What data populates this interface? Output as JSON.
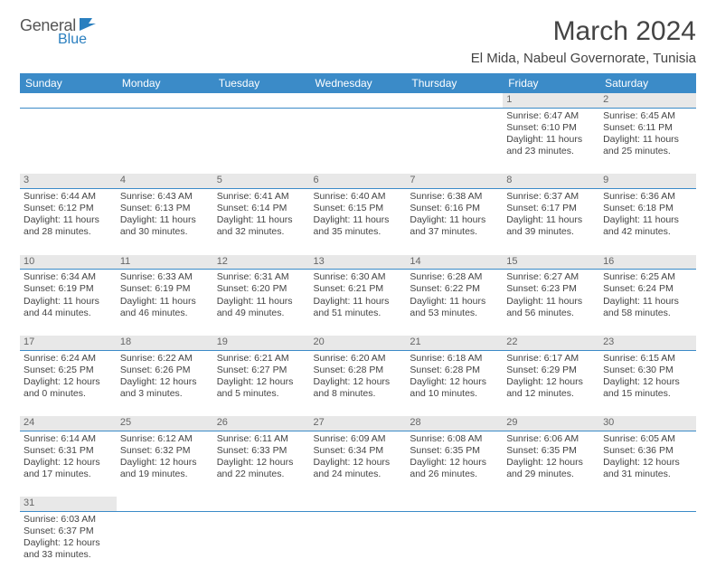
{
  "logo": {
    "textA": "General",
    "textB": "Blue"
  },
  "title": "March 2024",
  "location": "El Mida, Nabeul Governorate, Tunisia",
  "colors": {
    "header_bg": "#3b8bc8",
    "header_text": "#ffffff",
    "daynum_bg": "#e8e8e8",
    "daynum_text": "#666666",
    "border": "#3b8bc8",
    "body_text": "#444444",
    "logo_accent": "#2a7fbf"
  },
  "weekdays": [
    "Sunday",
    "Monday",
    "Tuesday",
    "Wednesday",
    "Thursday",
    "Friday",
    "Saturday"
  ],
  "weeks": [
    [
      {
        "day": "",
        "sunrise": "",
        "sunset": "",
        "daylight1": "",
        "daylight2": ""
      },
      {
        "day": "",
        "sunrise": "",
        "sunset": "",
        "daylight1": "",
        "daylight2": ""
      },
      {
        "day": "",
        "sunrise": "",
        "sunset": "",
        "daylight1": "",
        "daylight2": ""
      },
      {
        "day": "",
        "sunrise": "",
        "sunset": "",
        "daylight1": "",
        "daylight2": ""
      },
      {
        "day": "",
        "sunrise": "",
        "sunset": "",
        "daylight1": "",
        "daylight2": ""
      },
      {
        "day": "1",
        "sunrise": "Sunrise: 6:47 AM",
        "sunset": "Sunset: 6:10 PM",
        "daylight1": "Daylight: 11 hours",
        "daylight2": "and 23 minutes."
      },
      {
        "day": "2",
        "sunrise": "Sunrise: 6:45 AM",
        "sunset": "Sunset: 6:11 PM",
        "daylight1": "Daylight: 11 hours",
        "daylight2": "and 25 minutes."
      }
    ],
    [
      {
        "day": "3",
        "sunrise": "Sunrise: 6:44 AM",
        "sunset": "Sunset: 6:12 PM",
        "daylight1": "Daylight: 11 hours",
        "daylight2": "and 28 minutes."
      },
      {
        "day": "4",
        "sunrise": "Sunrise: 6:43 AM",
        "sunset": "Sunset: 6:13 PM",
        "daylight1": "Daylight: 11 hours",
        "daylight2": "and 30 minutes."
      },
      {
        "day": "5",
        "sunrise": "Sunrise: 6:41 AM",
        "sunset": "Sunset: 6:14 PM",
        "daylight1": "Daylight: 11 hours",
        "daylight2": "and 32 minutes."
      },
      {
        "day": "6",
        "sunrise": "Sunrise: 6:40 AM",
        "sunset": "Sunset: 6:15 PM",
        "daylight1": "Daylight: 11 hours",
        "daylight2": "and 35 minutes."
      },
      {
        "day": "7",
        "sunrise": "Sunrise: 6:38 AM",
        "sunset": "Sunset: 6:16 PM",
        "daylight1": "Daylight: 11 hours",
        "daylight2": "and 37 minutes."
      },
      {
        "day": "8",
        "sunrise": "Sunrise: 6:37 AM",
        "sunset": "Sunset: 6:17 PM",
        "daylight1": "Daylight: 11 hours",
        "daylight2": "and 39 minutes."
      },
      {
        "day": "9",
        "sunrise": "Sunrise: 6:36 AM",
        "sunset": "Sunset: 6:18 PM",
        "daylight1": "Daylight: 11 hours",
        "daylight2": "and 42 minutes."
      }
    ],
    [
      {
        "day": "10",
        "sunrise": "Sunrise: 6:34 AM",
        "sunset": "Sunset: 6:19 PM",
        "daylight1": "Daylight: 11 hours",
        "daylight2": "and 44 minutes."
      },
      {
        "day": "11",
        "sunrise": "Sunrise: 6:33 AM",
        "sunset": "Sunset: 6:19 PM",
        "daylight1": "Daylight: 11 hours",
        "daylight2": "and 46 minutes."
      },
      {
        "day": "12",
        "sunrise": "Sunrise: 6:31 AM",
        "sunset": "Sunset: 6:20 PM",
        "daylight1": "Daylight: 11 hours",
        "daylight2": "and 49 minutes."
      },
      {
        "day": "13",
        "sunrise": "Sunrise: 6:30 AM",
        "sunset": "Sunset: 6:21 PM",
        "daylight1": "Daylight: 11 hours",
        "daylight2": "and 51 minutes."
      },
      {
        "day": "14",
        "sunrise": "Sunrise: 6:28 AM",
        "sunset": "Sunset: 6:22 PM",
        "daylight1": "Daylight: 11 hours",
        "daylight2": "and 53 minutes."
      },
      {
        "day": "15",
        "sunrise": "Sunrise: 6:27 AM",
        "sunset": "Sunset: 6:23 PM",
        "daylight1": "Daylight: 11 hours",
        "daylight2": "and 56 minutes."
      },
      {
        "day": "16",
        "sunrise": "Sunrise: 6:25 AM",
        "sunset": "Sunset: 6:24 PM",
        "daylight1": "Daylight: 11 hours",
        "daylight2": "and 58 minutes."
      }
    ],
    [
      {
        "day": "17",
        "sunrise": "Sunrise: 6:24 AM",
        "sunset": "Sunset: 6:25 PM",
        "daylight1": "Daylight: 12 hours",
        "daylight2": "and 0 minutes."
      },
      {
        "day": "18",
        "sunrise": "Sunrise: 6:22 AM",
        "sunset": "Sunset: 6:26 PM",
        "daylight1": "Daylight: 12 hours",
        "daylight2": "and 3 minutes."
      },
      {
        "day": "19",
        "sunrise": "Sunrise: 6:21 AM",
        "sunset": "Sunset: 6:27 PM",
        "daylight1": "Daylight: 12 hours",
        "daylight2": "and 5 minutes."
      },
      {
        "day": "20",
        "sunrise": "Sunrise: 6:20 AM",
        "sunset": "Sunset: 6:28 PM",
        "daylight1": "Daylight: 12 hours",
        "daylight2": "and 8 minutes."
      },
      {
        "day": "21",
        "sunrise": "Sunrise: 6:18 AM",
        "sunset": "Sunset: 6:28 PM",
        "daylight1": "Daylight: 12 hours",
        "daylight2": "and 10 minutes."
      },
      {
        "day": "22",
        "sunrise": "Sunrise: 6:17 AM",
        "sunset": "Sunset: 6:29 PM",
        "daylight1": "Daylight: 12 hours",
        "daylight2": "and 12 minutes."
      },
      {
        "day": "23",
        "sunrise": "Sunrise: 6:15 AM",
        "sunset": "Sunset: 6:30 PM",
        "daylight1": "Daylight: 12 hours",
        "daylight2": "and 15 minutes."
      }
    ],
    [
      {
        "day": "24",
        "sunrise": "Sunrise: 6:14 AM",
        "sunset": "Sunset: 6:31 PM",
        "daylight1": "Daylight: 12 hours",
        "daylight2": "and 17 minutes."
      },
      {
        "day": "25",
        "sunrise": "Sunrise: 6:12 AM",
        "sunset": "Sunset: 6:32 PM",
        "daylight1": "Daylight: 12 hours",
        "daylight2": "and 19 minutes."
      },
      {
        "day": "26",
        "sunrise": "Sunrise: 6:11 AM",
        "sunset": "Sunset: 6:33 PM",
        "daylight1": "Daylight: 12 hours",
        "daylight2": "and 22 minutes."
      },
      {
        "day": "27",
        "sunrise": "Sunrise: 6:09 AM",
        "sunset": "Sunset: 6:34 PM",
        "daylight1": "Daylight: 12 hours",
        "daylight2": "and 24 minutes."
      },
      {
        "day": "28",
        "sunrise": "Sunrise: 6:08 AM",
        "sunset": "Sunset: 6:35 PM",
        "daylight1": "Daylight: 12 hours",
        "daylight2": "and 26 minutes."
      },
      {
        "day": "29",
        "sunrise": "Sunrise: 6:06 AM",
        "sunset": "Sunset: 6:35 PM",
        "daylight1": "Daylight: 12 hours",
        "daylight2": "and 29 minutes."
      },
      {
        "day": "30",
        "sunrise": "Sunrise: 6:05 AM",
        "sunset": "Sunset: 6:36 PM",
        "daylight1": "Daylight: 12 hours",
        "daylight2": "and 31 minutes."
      }
    ],
    [
      {
        "day": "31",
        "sunrise": "Sunrise: 6:03 AM",
        "sunset": "Sunset: 6:37 PM",
        "daylight1": "Daylight: 12 hours",
        "daylight2": "and 33 minutes."
      },
      {
        "day": "",
        "sunrise": "",
        "sunset": "",
        "daylight1": "",
        "daylight2": ""
      },
      {
        "day": "",
        "sunrise": "",
        "sunset": "",
        "daylight1": "",
        "daylight2": ""
      },
      {
        "day": "",
        "sunrise": "",
        "sunset": "",
        "daylight1": "",
        "daylight2": ""
      },
      {
        "day": "",
        "sunrise": "",
        "sunset": "",
        "daylight1": "",
        "daylight2": ""
      },
      {
        "day": "",
        "sunrise": "",
        "sunset": "",
        "daylight1": "",
        "daylight2": ""
      },
      {
        "day": "",
        "sunrise": "",
        "sunset": "",
        "daylight1": "",
        "daylight2": ""
      }
    ]
  ]
}
